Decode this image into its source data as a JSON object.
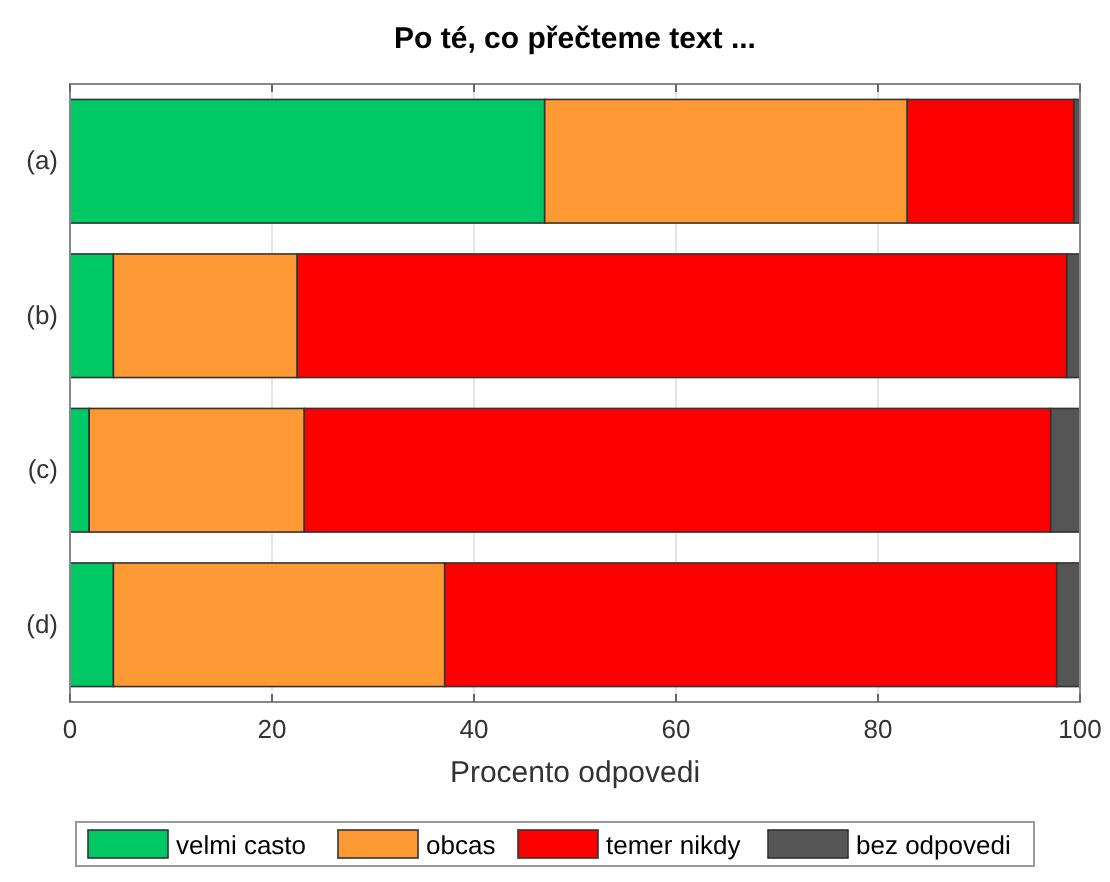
{
  "chart_data": {
    "type": "bar",
    "orientation": "horizontal",
    "stacked": true,
    "title": "Po té, co přečteme text ...",
    "xlabel": "Procento odpovedi",
    "categories": [
      "(a)",
      "(b)",
      "(c)",
      "(d)"
    ],
    "series": [
      {
        "name": "velmi casto",
        "color": "#00c864",
        "values": [
          47.0,
          4.3,
          1.9,
          4.3
        ]
      },
      {
        "name": "obcas",
        "color": "#ff9933",
        "values": [
          35.9,
          18.2,
          21.3,
          32.8
        ]
      },
      {
        "name": "temer nikdy",
        "color": "#ff0000",
        "values": [
          16.5,
          76.2,
          73.9,
          60.6
        ]
      },
      {
        "name": "bez odpovedi",
        "color": "#555555",
        "values": [
          0.6,
          1.3,
          2.9,
          2.3
        ]
      }
    ],
    "xlim": [
      0,
      100
    ],
    "xticks": [
      0,
      20,
      40,
      60,
      80,
      100
    ],
    "grid": "x",
    "legend": "bottom"
  }
}
